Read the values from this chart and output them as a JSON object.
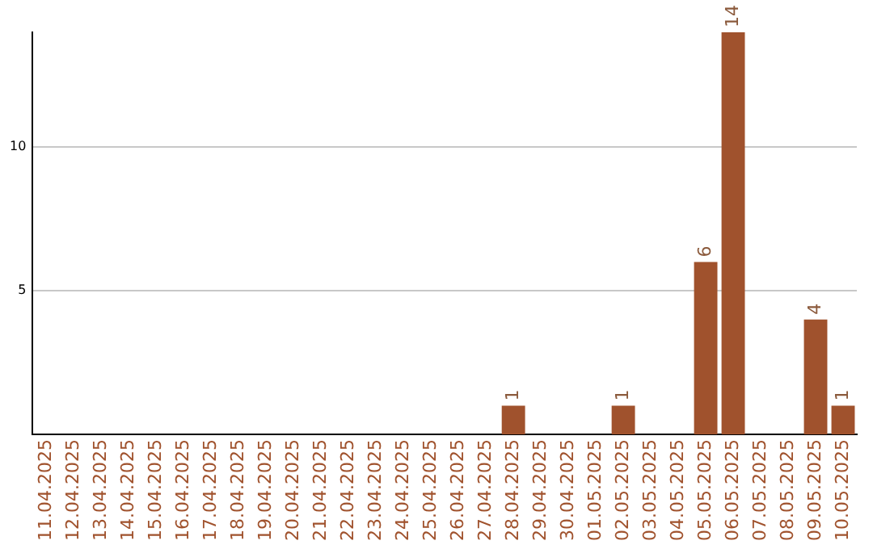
{
  "chart_data": {
    "type": "bar",
    "categories": [
      "11.04.2025",
      "12.04.2025",
      "13.04.2025",
      "14.04.2025",
      "15.04.2025",
      "16.04.2025",
      "17.04.2025",
      "18.04.2025",
      "19.04.2025",
      "20.04.2025",
      "21.04.2025",
      "22.04.2025",
      "23.04.2025",
      "24.04.2025",
      "25.04.2025",
      "26.04.2025",
      "27.04.2025",
      "28.04.2025",
      "29.04.2025",
      "30.04.2025",
      "01.05.2025",
      "02.05.2025",
      "03.05.2025",
      "04.05.2025",
      "05.05.2025",
      "06.05.2025",
      "07.05.2025",
      "08.05.2025",
      "09.05.2025",
      "10.05.2025"
    ],
    "values": [
      0,
      0,
      0,
      0,
      0,
      0,
      0,
      0,
      0,
      0,
      0,
      0,
      0,
      0,
      0,
      0,
      0,
      1,
      0,
      0,
      0,
      1,
      0,
      0,
      6,
      14,
      0,
      0,
      4,
      1
    ],
    "value_labels": [
      null,
      null,
      null,
      null,
      null,
      null,
      null,
      null,
      null,
      null,
      null,
      null,
      null,
      null,
      null,
      null,
      null,
      "1",
      null,
      null,
      null,
      "1",
      null,
      null,
      "6",
      "14",
      null,
      null,
      "4",
      "1"
    ],
    "color": "#a0522d",
    "ylim": [
      0,
      14
    ],
    "yticks": [
      5,
      10
    ],
    "grid": "y",
    "legend": false
  }
}
